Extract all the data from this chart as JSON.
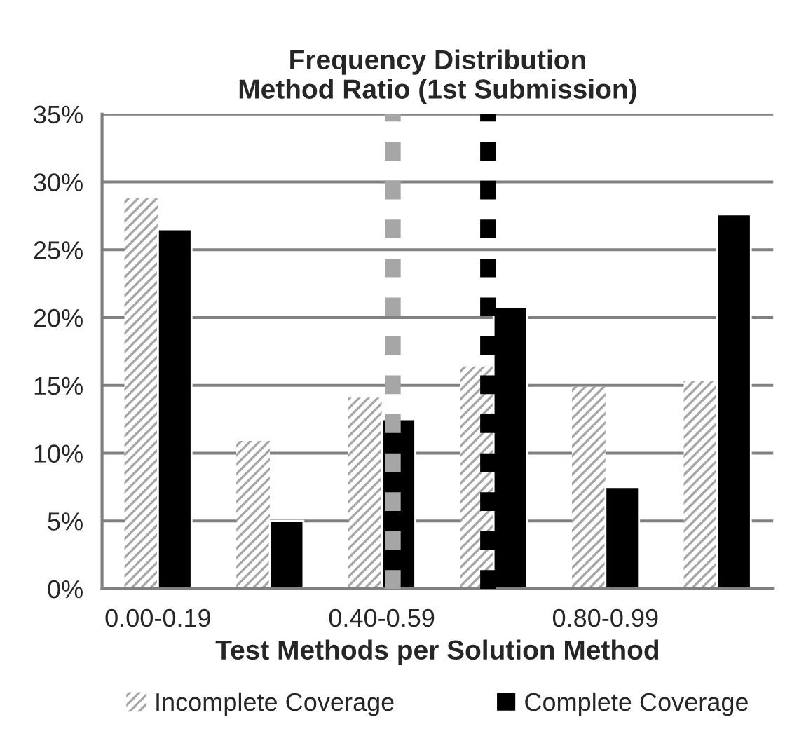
{
  "chart_data": {
    "type": "bar",
    "title": "Frequency Distribution\nMethod Ratio (1st Submission)",
    "xlabel": "Test Methods per Solution Method",
    "categories": [
      "0.00-0.19",
      null,
      "0.40-0.59",
      null,
      "0.80-0.99",
      null
    ],
    "series": [
      {
        "name": "Incomplete Coverage",
        "color": "#a6a6a6",
        "values": [
          28.8,
          10.9,
          14.1,
          16.4,
          14.9,
          15.3
        ]
      },
      {
        "name": "Complete Coverage",
        "color": "#000000",
        "values": [
          26.5,
          5.0,
          12.5,
          20.8,
          7.5,
          27.6
        ]
      }
    ],
    "ylim": [
      0,
      35
    ],
    "yticks": [
      {
        "value": 0,
        "label": "0%"
      },
      {
        "value": 5,
        "label": "5%"
      },
      {
        "value": 10,
        "label": "10%"
      },
      {
        "value": 15,
        "label": "15%"
      },
      {
        "value": 20,
        "label": "20%"
      },
      {
        "value": 25,
        "label": "25%"
      },
      {
        "value": 30,
        "label": "30%"
      },
      {
        "value": 35,
        "label": "35%"
      }
    ],
    "grid": "y",
    "legend": "bottom"
  }
}
